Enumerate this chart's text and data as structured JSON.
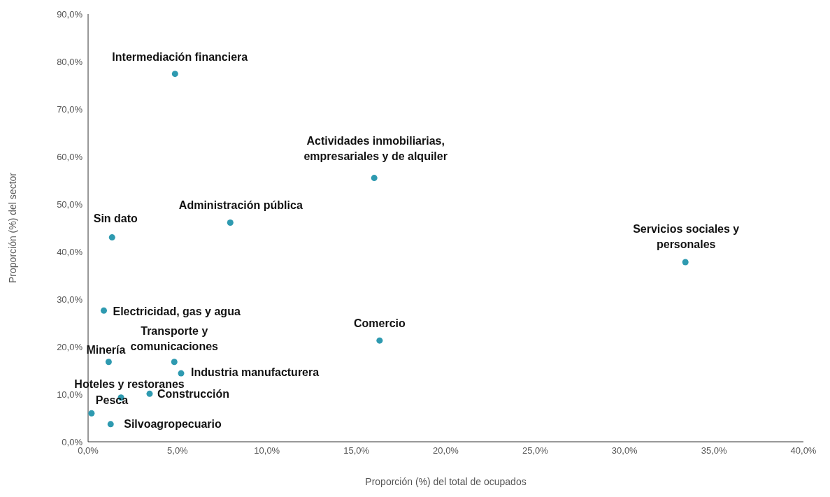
{
  "chart_data": {
    "type": "scatter",
    "xlabel": "Proporción (%) del total de ocupados",
    "ylabel": "Proporción (%) del sector",
    "x": [
      4.86,
      16.0,
      7.95,
      1.34,
      33.4,
      0.88,
      16.3,
      1.15,
      4.82,
      5.2,
      1.84,
      3.44,
      0.19,
      1.26
    ],
    "series": [
      {
        "color": "#2e9ab0",
        "values": [
          77.4,
          55.5,
          46.1,
          43.0,
          37.8,
          27.6,
          21.3,
          16.8,
          16.8,
          14.4,
          9.3,
          10.1,
          6.0,
          3.7
        ]
      }
    ],
    "annotations": [
      {
        "text": "Intermediación financiera",
        "x": 4.86,
        "y": 77.4
      },
      {
        "text": "Actividades inmobiliarias, empresariales y de alquiler",
        "x": 16.0,
        "y": 55.5
      },
      {
        "text": "Administración pública",
        "x": 7.95,
        "y": 46.1
      },
      {
        "text": "Sin dato",
        "x": 1.34,
        "y": 43.0
      },
      {
        "text": "Servicios sociales y personales",
        "x": 33.4,
        "y": 37.8
      },
      {
        "text": "Electricidad, gas y agua",
        "x": 0.88,
        "y": 27.6
      },
      {
        "text": "Comercio",
        "x": 16.3,
        "y": 21.3
      },
      {
        "text": "Minería",
        "x": 1.15,
        "y": 16.8
      },
      {
        "text": "Transporte y comunicaciones",
        "x": 4.82,
        "y": 16.8
      },
      {
        "text": "Industria manufacturera",
        "x": 5.2,
        "y": 14.4
      },
      {
        "text": "Hoteles y restoranes",
        "x": 1.84,
        "y": 9.3
      },
      {
        "text": "Construcción",
        "x": 3.44,
        "y": 10.1
      },
      {
        "text": "Pesca",
        "x": 0.19,
        "y": 6.0
      },
      {
        "text": "Silvoagropecuario",
        "x": 1.26,
        "y": 3.7
      }
    ],
    "xlim": [
      0,
      40
    ],
    "xticks": [
      {
        "value": 0,
        "label": "0,0%"
      },
      {
        "value": 5,
        "label": "5,0%"
      },
      {
        "value": 10,
        "label": "10,0%"
      },
      {
        "value": 15,
        "label": "15,0%"
      },
      {
        "value": 20,
        "label": "20,0%"
      },
      {
        "value": 25,
        "label": "25,0%"
      },
      {
        "value": 30,
        "label": "30,0%"
      },
      {
        "value": 35,
        "label": "35,0%"
      },
      {
        "value": 40,
        "label": "40,0%"
      }
    ],
    "ylim": [
      0,
      90
    ],
    "yticks": [
      {
        "value": 0,
        "label": "0,0%"
      },
      {
        "value": 10,
        "label": "10,0%"
      },
      {
        "value": 20,
        "label": "20,0%"
      },
      {
        "value": 30,
        "label": "30,0%"
      },
      {
        "value": 40,
        "label": "40,0%"
      },
      {
        "value": 50,
        "label": "50,0%"
      },
      {
        "value": 60,
        "label": "60,0%"
      },
      {
        "value": 70,
        "label": "70,0%"
      },
      {
        "value": 80,
        "label": "80,0%"
      },
      {
        "value": 90,
        "label": "90,0%"
      }
    ],
    "grid": false,
    "legend": false,
    "marker": "circle"
  }
}
